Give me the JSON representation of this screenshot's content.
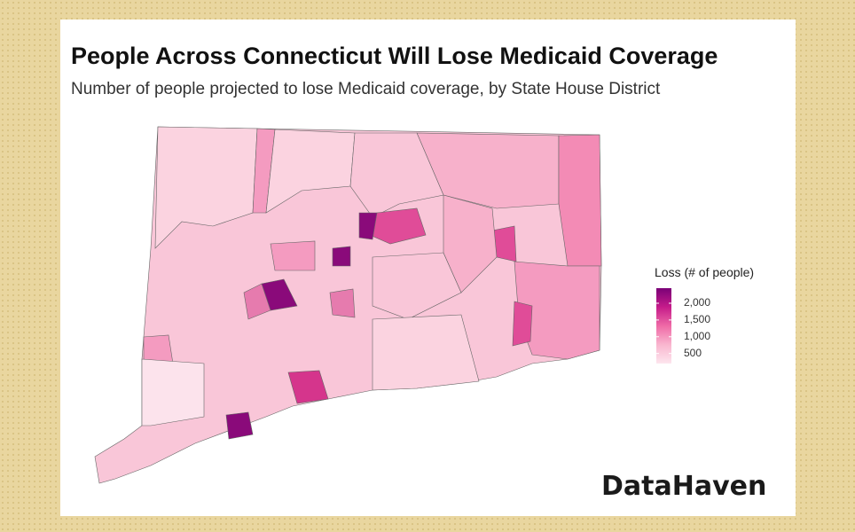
{
  "chart_data": {
    "type": "choropleth",
    "title": "People Across Connecticut Will Lose Medicaid Coverage",
    "subtitle": "Number of people projected to lose Medicaid coverage, by State House District",
    "legend_title": "Loss (# of people)",
    "clim": [
      200,
      2450
    ],
    "cticks": [
      500,
      {
        "value": 1000,
        "label": "1,000"
      },
      {
        "value": 1500,
        "label": "1,500"
      },
      {
        "value": 2000,
        "label": "2,000"
      }
    ],
    "colors": [
      "#fde6ee",
      "#f9b6cf",
      "#ef6aa6",
      "#c51b8a",
      "#7a0177"
    ],
    "source": "DataHaven"
  }
}
